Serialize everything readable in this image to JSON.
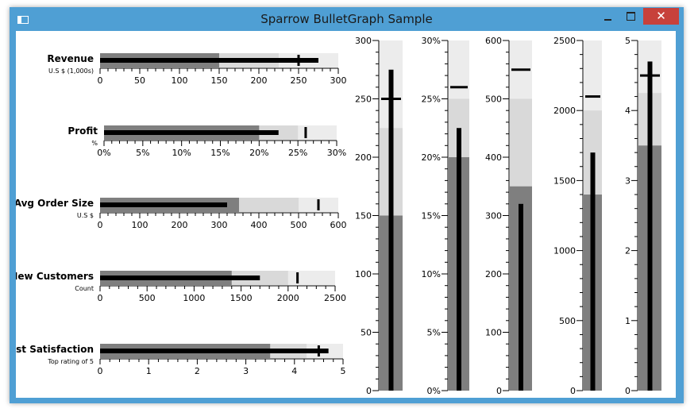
{
  "window": {
    "title": "Sparrow BulletGraph Sample",
    "close_glyph": "✕",
    "icons": [
      "app-icon",
      "minimize-icon",
      "maximize-icon",
      "close-icon"
    ]
  },
  "chart_data": {
    "type": "bullet",
    "bar_colors": {
      "range_dark": "#7f7f7f",
      "range_mid": "#d9d9d9",
      "range_light": "#ececec",
      "bar": "#000000",
      "target": "#000000"
    },
    "horizontal": [
      {
        "title": "Revenue",
        "subtitle": "U.S $ (1,000s)",
        "max": 300,
        "ticks": [
          "0",
          "50",
          "100",
          "150",
          "200",
          "250",
          "300"
        ],
        "ranges": [
          150,
          225,
          300
        ],
        "value": 275,
        "target": 250
      },
      {
        "title": "Profit",
        "subtitle": "%",
        "max": 30,
        "ticks": [
          "0%",
          "5%",
          "10%",
          "15%",
          "20%",
          "25%",
          "30%"
        ],
        "ranges": [
          20,
          25,
          30
        ],
        "value": 22.5,
        "target": 26
      },
      {
        "title": "Avg Order Size",
        "subtitle": "U.S $",
        "max": 600,
        "ticks": [
          "0",
          "100",
          "200",
          "300",
          "400",
          "500",
          "600"
        ],
        "ranges": [
          350,
          500,
          600
        ],
        "value": 320,
        "target": 550
      },
      {
        "title": "New Customers",
        "subtitle": "Count",
        "max": 2500,
        "ticks": [
          "0",
          "500",
          "1000",
          "1500",
          "2000",
          "2500"
        ],
        "ranges": [
          1400,
          2000,
          2500
        ],
        "value": 1700,
        "target": 2100
      },
      {
        "title": "Cust Satisfaction",
        "subtitle": "Top rating of 5",
        "max": 5,
        "ticks": [
          "0",
          "1",
          "2",
          "3",
          "4",
          "5"
        ],
        "ranges": [
          3.5,
          4.25,
          5
        ],
        "value": 4.7,
        "target": 4.5
      }
    ],
    "vertical": [
      {
        "max": 300,
        "ticks": [
          "0",
          "50",
          "100",
          "150",
          "200",
          "250",
          "300"
        ],
        "ranges": [
          150,
          225,
          300
        ],
        "value": 275,
        "target": 250
      },
      {
        "max": 30,
        "ticks": [
          "0%",
          "5%",
          "10%",
          "15%",
          "20%",
          "25%",
          "30%"
        ],
        "ranges": [
          20,
          25,
          30
        ],
        "value": 22.5,
        "target": 26
      },
      {
        "max": 600,
        "ticks": [
          "0",
          "100",
          "200",
          "300",
          "400",
          "500",
          "600"
        ],
        "ranges": [
          350,
          500,
          600
        ],
        "value": 320,
        "target": 550
      },
      {
        "max": 2500,
        "ticks": [
          "0",
          "500",
          "1000",
          "1500",
          "2000",
          "2500"
        ],
        "ranges": [
          1400,
          2000,
          2500
        ],
        "value": 1700,
        "target": 2100
      },
      {
        "max": 5,
        "ticks": [
          "0",
          "1",
          "2",
          "3",
          "4",
          "5"
        ],
        "ranges": [
          3.5,
          4.25,
          5
        ],
        "value": 4.7,
        "target": 4.5
      }
    ]
  }
}
